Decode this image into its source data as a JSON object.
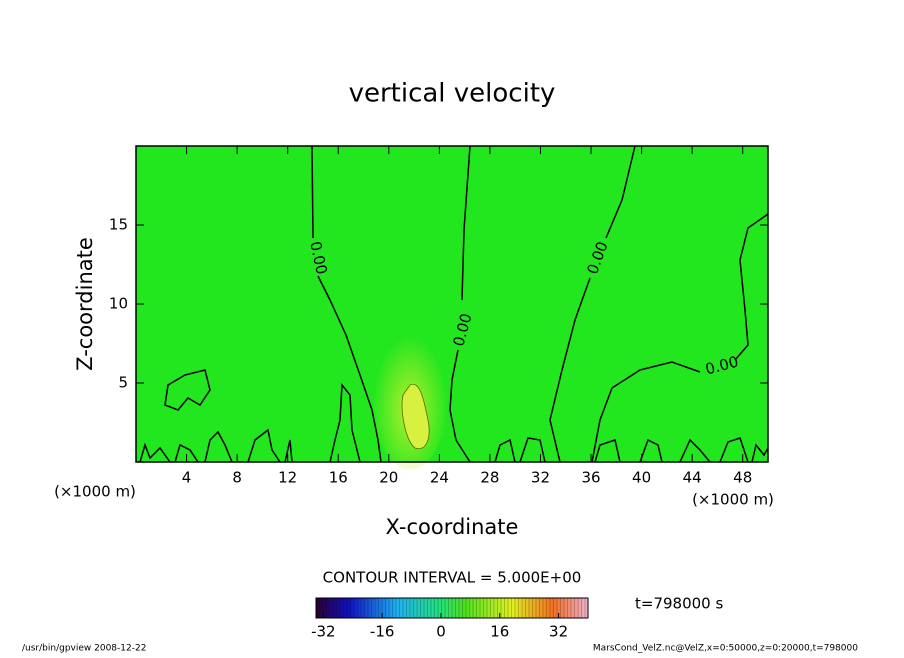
{
  "chart_data": {
    "type": "contour",
    "title": "vertical velocity",
    "xlabel": "X-coordinate",
    "ylabel": "Z-coordinate",
    "x_unit_label": "(×1000 m)",
    "xlim": [
      0,
      50
    ],
    "xticks": [
      4,
      8,
      12,
      16,
      20,
      24,
      28,
      32,
      36,
      40,
      44,
      48
    ],
    "ylim": [
      0,
      20
    ],
    "yticks": [
      5,
      10,
      15
    ],
    "field_color": "#22e61e",
    "contour_color": "#000000",
    "contour_labels": [
      {
        "value": 0,
        "label": "0.00"
      },
      {
        "value": 0,
        "label": "0.00"
      },
      {
        "value": 0,
        "label": "0.00"
      },
      {
        "value": 0,
        "label": "0.00"
      }
    ],
    "contour_interval_label": "CONTOUR INTERVAL = 5.000E+00",
    "time_label": "t=798000 s",
    "colorbar_lim": [
      -34,
      40
    ],
    "colorbar_ticks": [
      -32,
      -16,
      0,
      16,
      32
    ],
    "footer_left": "/usr/bin/gpview   2008-12-22",
    "footer_right": "MarsCond_VelZ.nc@VelZ,x=0:50000,z=0:20000,t=798000"
  }
}
